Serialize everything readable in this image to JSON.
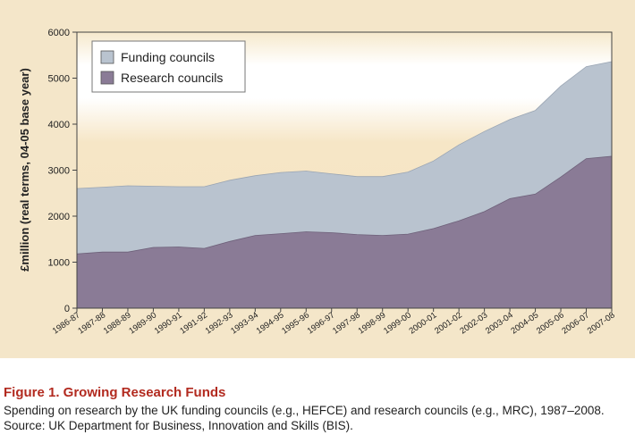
{
  "chart_data": {
    "type": "area",
    "stacked": false,
    "ylabel": "£million (real terms, 04-05 base year)",
    "xlabel": "",
    "ylim": [
      0,
      6000
    ],
    "yticks": [
      0,
      1000,
      2000,
      3000,
      4000,
      5000,
      6000
    ],
    "grid": false,
    "legend_position": "top-left",
    "categories": [
      "1986-87",
      "1987-88",
      "1988-89",
      "1989-90",
      "1990-91",
      "1991-92",
      "1992-93",
      "1993-94",
      "1994-95",
      "1995-96",
      "1996-97",
      "1997-98",
      "1998-99",
      "1999-00",
      "2000-01",
      "2001-02",
      "2002-03",
      "2003-04",
      "2004-05",
      "2005-06",
      "2006-07",
      "2007-08"
    ],
    "series": [
      {
        "name": "Funding councils",
        "color": "#b9c3cf",
        "values": [
          2600,
          2630,
          2660,
          2650,
          2640,
          2640,
          2780,
          2880,
          2950,
          2980,
          2920,
          2860,
          2860,
          2960,
          3200,
          3550,
          3840,
          4100,
          4300,
          4830,
          5250,
          5360
        ]
      },
      {
        "name": "Research councils",
        "color": "#8a7b96",
        "values": [
          1180,
          1220,
          1220,
          1320,
          1330,
          1300,
          1450,
          1580,
          1620,
          1660,
          1640,
          1600,
          1580,
          1610,
          1730,
          1900,
          2100,
          2380,
          2480,
          2850,
          3250,
          3300
        ]
      }
    ]
  },
  "caption": {
    "title": "Figure 1. Growing Research Funds",
    "text": "Spending on research by the UK funding councils (e.g., HEFCE) and research councils (e.g., MRC), 1987–2008. Source: UK Department for Business, Innovation and Skills (BIS)."
  },
  "colors": {
    "panel_background": "#f4e6c9",
    "caption_title": "#b22a1f"
  }
}
